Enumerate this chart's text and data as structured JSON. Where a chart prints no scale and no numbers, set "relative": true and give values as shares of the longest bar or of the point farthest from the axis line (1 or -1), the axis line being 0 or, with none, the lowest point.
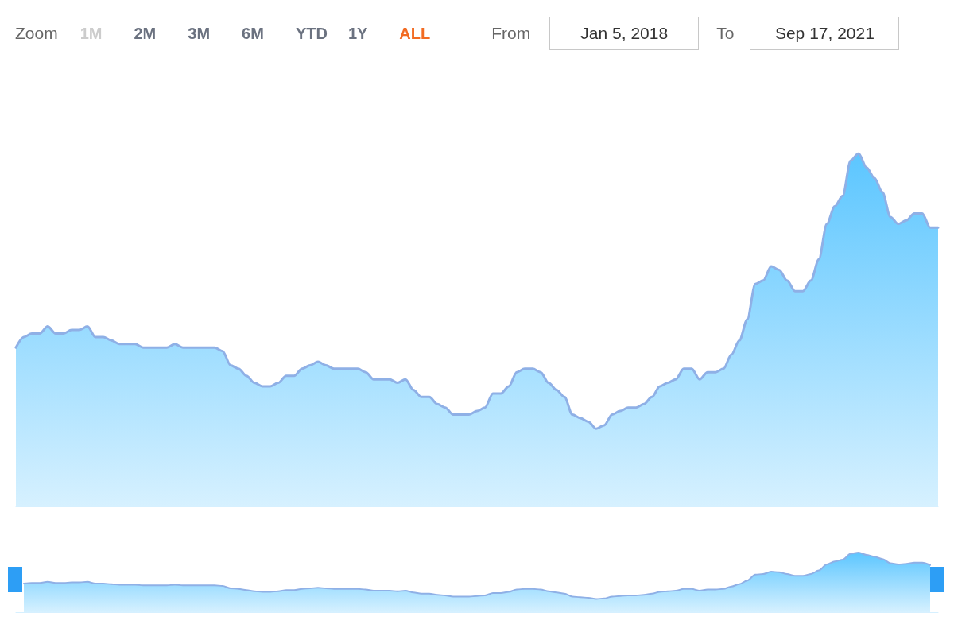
{
  "chart_data": [
    {
      "type": "area",
      "relative": true,
      "annotations": [
        "Zoom",
        "1M",
        "2M",
        "3M",
        "6M",
        "YTD",
        "1Y",
        "ALL",
        "From",
        "Jan 5, 2018",
        "To",
        "Sep 17, 2021"
      ],
      "categories": [
        null,
        null,
        null,
        null,
        null,
        null,
        null,
        null,
        null,
        null,
        null,
        null,
        null,
        null,
        null,
        null,
        null,
        null,
        null,
        null,
        null,
        null,
        null,
        null,
        null,
        null,
        null,
        null,
        null,
        null,
        null,
        null,
        null,
        null,
        null,
        null,
        null,
        null,
        null,
        null,
        null,
        null,
        null,
        null,
        null,
        null,
        null,
        null,
        null,
        null,
        null,
        null,
        null,
        null,
        null,
        null,
        null,
        null,
        null,
        null,
        null,
        null,
        null,
        null,
        null,
        null,
        null,
        null,
        null,
        null,
        null,
        null,
        null,
        null,
        null,
        null,
        null,
        null,
        null,
        null,
        null,
        null,
        null,
        null,
        null,
        null,
        null,
        null,
        null,
        null,
        null,
        null,
        null,
        null,
        null,
        null,
        null,
        null,
        null,
        null,
        null,
        null,
        null,
        null,
        null,
        null,
        null,
        null,
        null,
        null,
        null,
        null,
        null,
        null,
        null,
        null,
        null
      ],
      "series": [
        {
          "color": "#5cc6ff",
          "values": [
            0.45,
            0.48,
            0.49,
            0.49,
            0.51,
            0.49,
            0.49,
            0.5,
            0.5,
            0.51,
            0.48,
            0.48,
            0.47,
            0.46,
            0.46,
            0.46,
            0.45,
            0.45,
            0.45,
            0.45,
            0.46,
            0.45,
            0.45,
            0.45,
            0.45,
            0.45,
            0.44,
            0.4,
            0.39,
            0.37,
            0.35,
            0.34,
            0.34,
            0.35,
            0.37,
            0.37,
            0.39,
            0.4,
            0.41,
            0.4,
            0.39,
            0.39,
            0.39,
            0.39,
            0.38,
            0.36,
            0.36,
            0.36,
            0.35,
            0.36,
            0.33,
            0.31,
            0.31,
            0.29,
            0.28,
            0.26,
            0.26,
            0.26,
            0.27,
            0.28,
            0.32,
            0.32,
            0.34,
            0.38,
            0.39,
            0.39,
            0.38,
            0.35,
            0.33,
            0.31,
            0.26,
            0.25,
            0.24,
            0.22,
            0.23,
            0.26,
            0.27,
            0.28,
            0.28,
            0.29,
            0.31,
            0.34,
            0.35,
            0.36,
            0.39,
            0.39,
            0.36,
            0.38,
            0.38,
            0.39,
            0.43,
            0.47,
            0.53,
            0.63,
            0.64,
            0.68,
            0.67,
            0.64,
            0.61,
            0.61,
            0.64,
            0.7,
            0.8,
            0.85,
            0.88,
            0.98,
            1.0,
            0.96,
            0.93,
            0.89,
            0.82,
            0.8,
            0.81,
            0.83,
            0.83,
            0.79,
            0.79
          ]
        }
      ],
      "marker": "none",
      "line_style": "solid"
    },
    {
      "type": "area",
      "relative": true,
      "categories": [
        null,
        null,
        null,
        null,
        null,
        null,
        null,
        null,
        null,
        null,
        null,
        null,
        null,
        null,
        null,
        null,
        null,
        null,
        null,
        null,
        null,
        null,
        null,
        null,
        null,
        null,
        null,
        null,
        null,
        null,
        null,
        null,
        null,
        null,
        null,
        null,
        null,
        null,
        null,
        null,
        null,
        null,
        null,
        null,
        null,
        null,
        null,
        null,
        null,
        null,
        null,
        null,
        null,
        null,
        null,
        null,
        null,
        null,
        null,
        null,
        null,
        null,
        null,
        null,
        null,
        null,
        null,
        null,
        null,
        null,
        null,
        null,
        null,
        null,
        null,
        null,
        null,
        null,
        null,
        null,
        null,
        null,
        null,
        null,
        null,
        null,
        null,
        null,
        null,
        null,
        null,
        null,
        null,
        null,
        null,
        null,
        null,
        null,
        null,
        null,
        null,
        null,
        null,
        null,
        null,
        null,
        null,
        null,
        null,
        null,
        null,
        null,
        null,
        null,
        null,
        null,
        null
      ],
      "series": [
        {
          "color": "#5cc6ff",
          "values": [
            null,
            0.48,
            0.49,
            0.49,
            0.51,
            0.49,
            0.49,
            0.5,
            0.5,
            0.51,
            0.48,
            0.48,
            0.47,
            0.46,
            0.46,
            0.46,
            0.45,
            0.45,
            0.45,
            0.45,
            0.46,
            0.45,
            0.45,
            0.45,
            0.45,
            0.45,
            0.44,
            0.4,
            0.39,
            0.37,
            0.35,
            0.34,
            0.34,
            0.35,
            0.37,
            0.37,
            0.39,
            0.4,
            0.41,
            0.4,
            0.39,
            0.39,
            0.39,
            0.39,
            0.38,
            0.36,
            0.36,
            0.36,
            0.35,
            0.36,
            0.33,
            0.31,
            0.31,
            0.29,
            0.28,
            0.26,
            0.26,
            0.26,
            0.27,
            0.28,
            0.32,
            0.32,
            0.34,
            0.38,
            0.39,
            0.39,
            0.38,
            0.35,
            0.33,
            0.31,
            0.26,
            0.25,
            0.24,
            0.22,
            0.23,
            0.26,
            0.27,
            0.28,
            0.28,
            0.29,
            0.31,
            0.34,
            0.35,
            0.36,
            0.39,
            0.39,
            0.36,
            0.38,
            0.38,
            0.39,
            0.43,
            0.47,
            0.53,
            0.63,
            0.64,
            0.68,
            0.67,
            0.64,
            0.61,
            0.61,
            0.64,
            0.7,
            0.8,
            0.85,
            0.88,
            0.98,
            1.0,
            0.96,
            0.93,
            0.89,
            0.82,
            0.8,
            0.81,
            0.83,
            0.83,
            0.79,
            null
          ]
        }
      ],
      "marker": "none",
      "line_style": "solid"
    }
  ]
}
